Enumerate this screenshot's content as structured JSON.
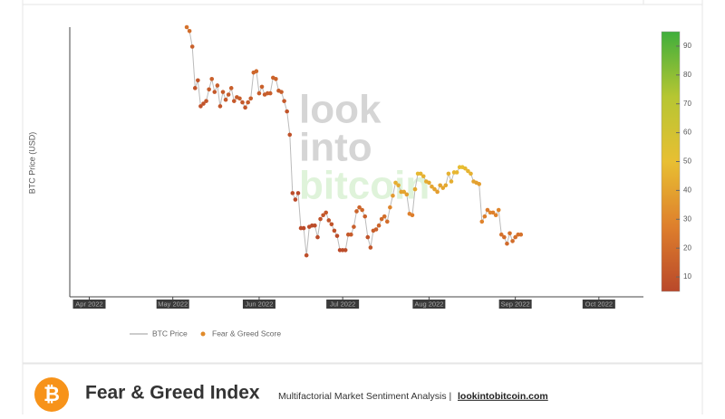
{
  "chart_data": {
    "type": "scatter-line",
    "y_label": "BTC Price (USD)",
    "watermark": [
      "look",
      "into",
      "bitcoin"
    ],
    "x": [
      35,
      36,
      37,
      38,
      39,
      40,
      41,
      42,
      43,
      44,
      45,
      46,
      47,
      48,
      49,
      50,
      51,
      52,
      53,
      54,
      55,
      56,
      57,
      58,
      59,
      60,
      61,
      62,
      63,
      64,
      65,
      66,
      67,
      68,
      69,
      70,
      71,
      72,
      73,
      74,
      75,
      76,
      77,
      78,
      79,
      80,
      81,
      82,
      83,
      84,
      85,
      86,
      87,
      88,
      89,
      90,
      91,
      92,
      93,
      94,
      95,
      96,
      97,
      98,
      99,
      100,
      101,
      102,
      103,
      104,
      105,
      106,
      107,
      108,
      109,
      110,
      111,
      112,
      113,
      114,
      115,
      116,
      117,
      118,
      119,
      120,
      121,
      122,
      123,
      124,
      125,
      126,
      127,
      128,
      129,
      130,
      131,
      132,
      133,
      134,
      135,
      136,
      137,
      138,
      139,
      140,
      141,
      142,
      143,
      144,
      145,
      146,
      147,
      148,
      149,
      150,
      151,
      152,
      153,
      154,
      155
    ],
    "xlim": [
      -7,
      199
    ],
    "xticks": [
      {
        "value": 0,
        "label": "Apr 2022"
      },
      {
        "value": 30,
        "label": "May 2022"
      },
      {
        "value": 61,
        "label": "Jun 2022"
      },
      {
        "value": 91,
        "label": "Jul 2022"
      },
      {
        "value": 122,
        "label": "Aug 2022"
      },
      {
        "value": 153,
        "label": "Sep 2022"
      },
      {
        "value": 183,
        "label": "Oct 2022"
      }
    ],
    "ylim": [
      15700,
      36500
    ],
    "zlim": [
      5,
      95
    ],
    "zticks": [
      10,
      20,
      30,
      40,
      50,
      60,
      70,
      80,
      90
    ],
    "colorscale": [
      "#b9482a",
      "#de7f2c",
      "#e8bf32",
      "#b6c632",
      "#3fae3c"
    ],
    "series": [
      {
        "name": "BTC Price",
        "color": "#bbbbbb",
        "values": [
          36500,
          36200,
          35000,
          31800,
          32400,
          30400,
          30600,
          30800,
          31700,
          32500,
          31500,
          32000,
          30400,
          31500,
          30900,
          31300,
          31800,
          30800,
          31100,
          31000,
          30700,
          30300,
          30700,
          31000,
          33000,
          33100,
          31400,
          31900,
          31300,
          31400,
          31400,
          32600,
          32500,
          31600,
          31500,
          30800,
          30000,
          28200,
          23700,
          23200,
          23700,
          21000,
          21000,
          18900,
          21100,
          21200,
          21200,
          20300,
          21700,
          22000,
          22200,
          21600,
          21300,
          20800,
          20400,
          19300,
          19300,
          19300,
          20500,
          20500,
          21100,
          22300,
          22600,
          22400,
          21900,
          20300,
          19500,
          20800,
          20900,
          21200,
          21700,
          21900,
          21500,
          22600,
          23500,
          24500,
          24300,
          23800,
          23800,
          23600,
          22100,
          22000,
          24000,
          25200,
          25200,
          25000,
          24600,
          24500,
          24200,
          24000,
          23800,
          24300,
          24100,
          24300,
          25200,
          24600,
          25300,
          25300,
          25700,
          25700,
          25600,
          25400,
          25200,
          24600,
          24500,
          24400,
          21500,
          21900,
          22400,
          22200,
          22200,
          22000,
          22400,
          20500,
          20300,
          19800,
          20600,
          20000,
          20300,
          20500,
          20500
        ]
      },
      {
        "name": "Fear & Greed Score",
        "color": "#e08a2a",
        "values": [
          22,
          20,
          15,
          10,
          11,
          9,
          10,
          11,
          13,
          15,
          12,
          14,
          11,
          13,
          12,
          13,
          14,
          12,
          13,
          14,
          12,
          11,
          13,
          14,
          17,
          18,
          14,
          15,
          13,
          14,
          14,
          16,
          16,
          14,
          14,
          12,
          10,
          9,
          7,
          6,
          6,
          7,
          6,
          8,
          7,
          7,
          7,
          7,
          10,
          11,
          12,
          10,
          10,
          9,
          7,
          6,
          7,
          7,
          12,
          13,
          14,
          16,
          17,
          18,
          15,
          10,
          11,
          14,
          15,
          17,
          19,
          21,
          20,
          30,
          37,
          44,
          43,
          40,
          41,
          39,
          28,
          27,
          42,
          48,
          46,
          45,
          43,
          42,
          41,
          40,
          38,
          40,
          41,
          42,
          45,
          44,
          47,
          47,
          49,
          50,
          48,
          46,
          45,
          40,
          39,
          38,
          29,
          27,
          26,
          30,
          28,
          29,
          30,
          22,
          20,
          19,
          22,
          20,
          21,
          22,
          22
        ]
      }
    ]
  },
  "footer": {
    "logo": "₿",
    "title": "Fear & Greed Index",
    "subtitle": "Multifactorial Market Sentiment Analysis | ",
    "link": "lookintobitcoin.com"
  }
}
